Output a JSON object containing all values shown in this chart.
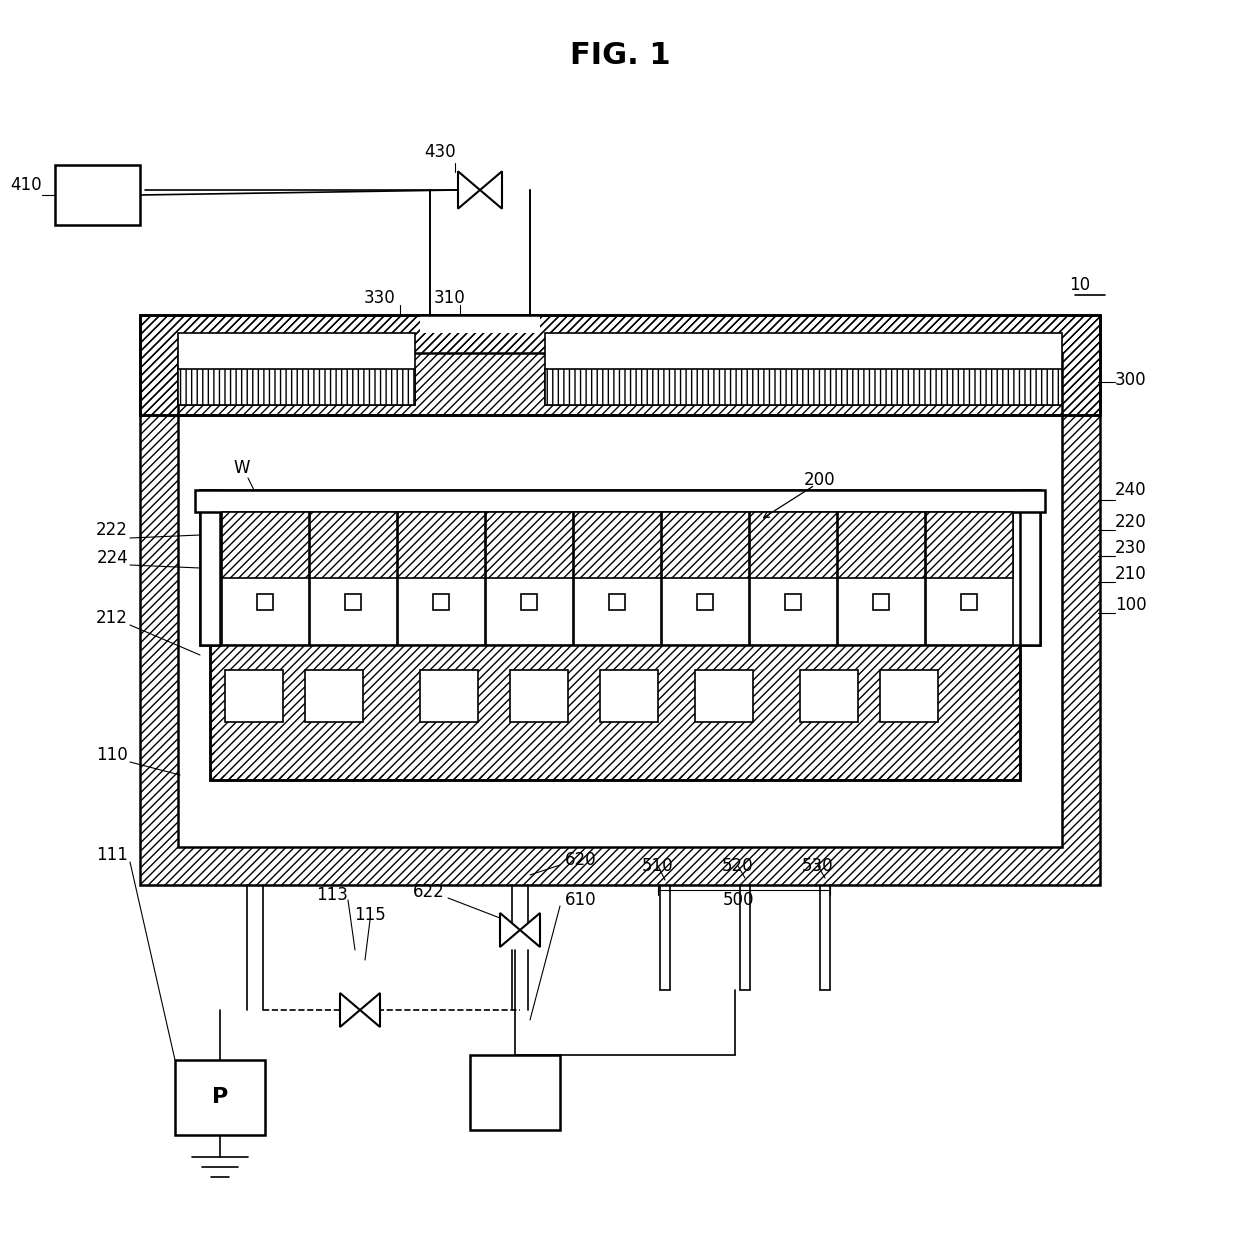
{
  "title": "FIG. 1",
  "bg_color": "#ffffff",
  "fig_width": 12.4,
  "fig_height": 12.54,
  "dpi": 100
}
